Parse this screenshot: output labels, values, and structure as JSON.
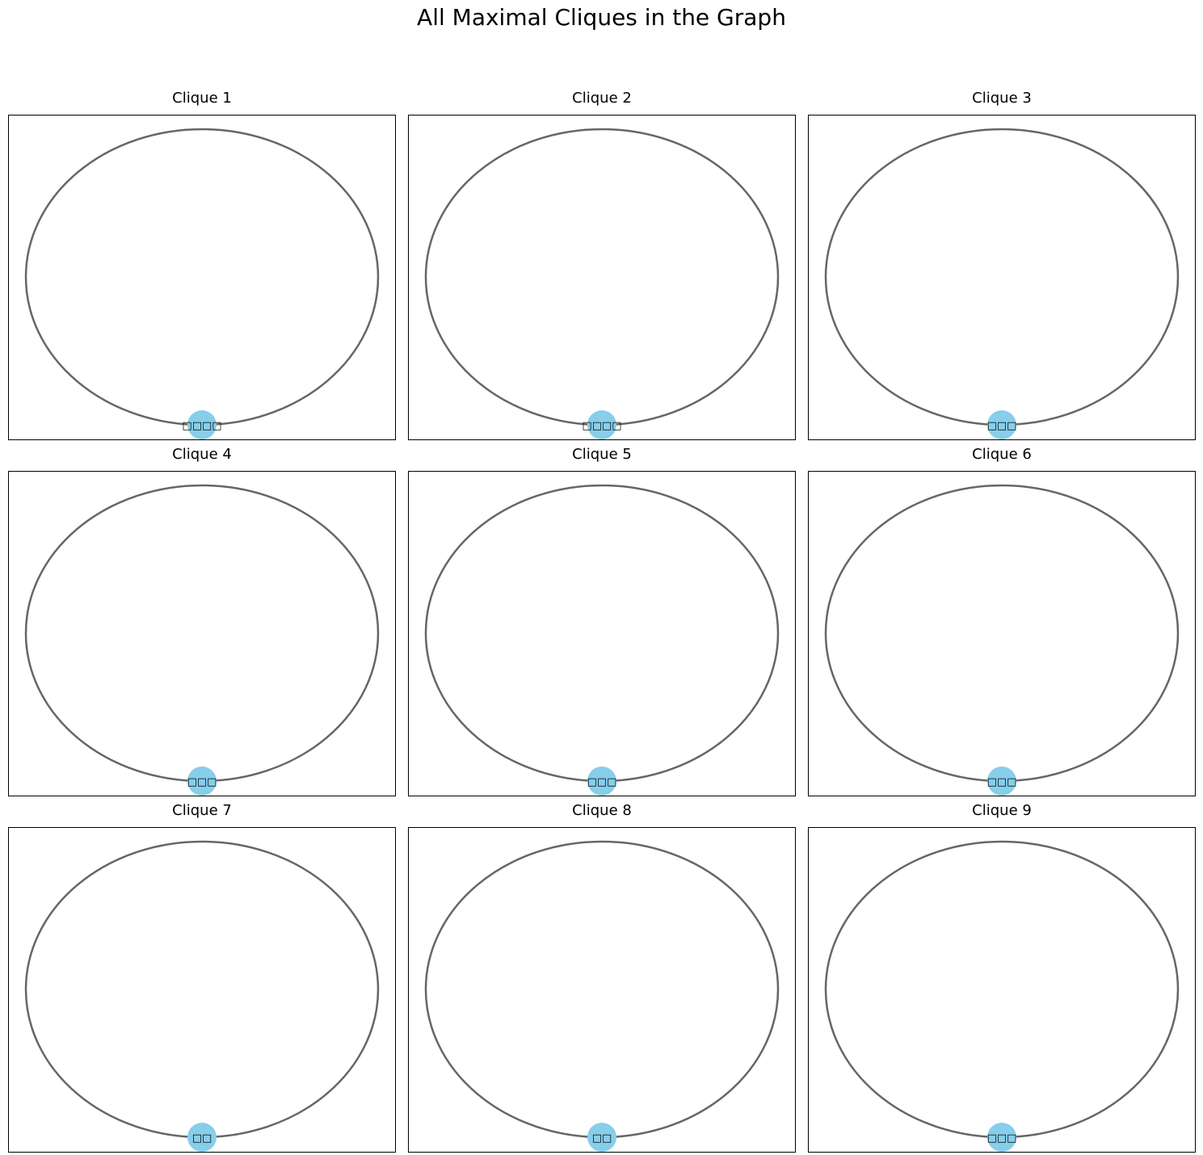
{
  "figure": {
    "title": "All Maximal Cliques in the Graph"
  },
  "style": {
    "edge_color": "#666666",
    "node_color": "#87ceeb"
  },
  "panels": [
    {
      "title": "Clique 1",
      "node_label": "□□□□"
    },
    {
      "title": "Clique 2",
      "node_label": "□□□□"
    },
    {
      "title": "Clique 3",
      "node_label": "□□□"
    },
    {
      "title": "Clique 4",
      "node_label": "□□□"
    },
    {
      "title": "Clique 5",
      "node_label": "□□□"
    },
    {
      "title": "Clique 6",
      "node_label": "□□□"
    },
    {
      "title": "Clique 7",
      "node_label": "□□"
    },
    {
      "title": "Clique 8",
      "node_label": "□□"
    },
    {
      "title": "Clique 9",
      "node_label": "□□□"
    }
  ]
}
